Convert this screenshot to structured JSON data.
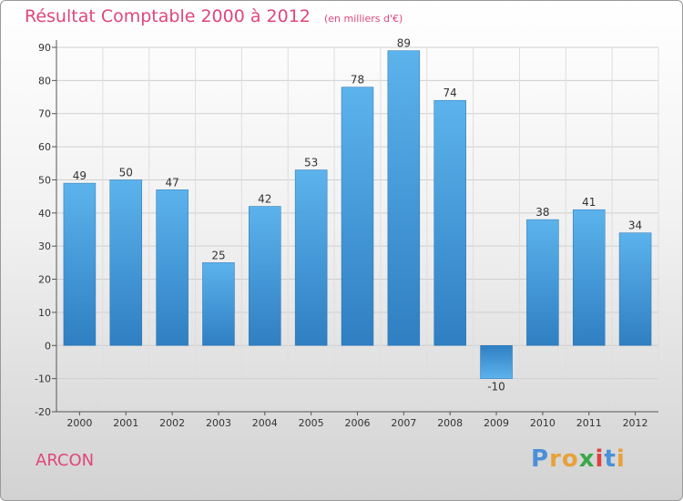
{
  "title": "Résultat Comptable 2000 à 2012",
  "unit_note": "(en milliers d'€)",
  "commune": "ARCON",
  "brand": {
    "letters": [
      "P",
      "r",
      "o",
      "x",
      "i",
      "t",
      "i"
    ],
    "colors": [
      "#4a90d9",
      "#e8a13a",
      "#e8a13a",
      "#3aa84a",
      "#e04040",
      "#4a90d9",
      "#e8a13a"
    ]
  },
  "colors": {
    "bar": "#4ba3e2",
    "bar_dark": "#2f7fc2",
    "text_accent": "#e0477a"
  },
  "chart_data": {
    "type": "bar",
    "title": "Résultat Comptable 2000 à 2012",
    "categories": [
      "2000",
      "2001",
      "2002",
      "2003",
      "2004",
      "2005",
      "2006",
      "2007",
      "2008",
      "2009",
      "2010",
      "2011",
      "2012"
    ],
    "values": [
      49,
      50,
      47,
      25,
      42,
      53,
      78,
      89,
      74,
      -10,
      38,
      41,
      34
    ],
    "value_labels": [
      "49",
      "50",
      "47",
      "25",
      "42",
      "53",
      "78",
      "89",
      "74",
      "-10",
      "38",
      "41",
      "34"
    ],
    "ylim": [
      -20,
      90
    ],
    "yticks": [
      -20,
      -10,
      0,
      10,
      20,
      30,
      40,
      50,
      60,
      70,
      80,
      90
    ],
    "xlabel": "",
    "ylabel": "",
    "grid": true
  }
}
